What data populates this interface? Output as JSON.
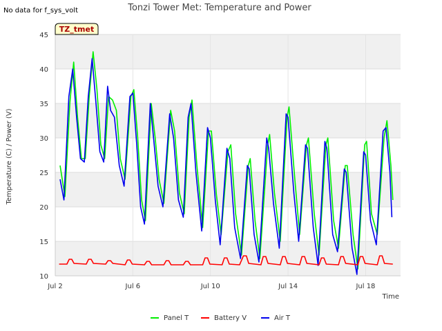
{
  "chart_data": {
    "type": "line",
    "title": "Tonzi Tower Met: Temperature and Power",
    "note": "No data for f_sys_volt",
    "site_label": "TZ_tmet",
    "xlabel": "Time",
    "ylabel": "Temperature (C) / Power (V)",
    "xlim": [
      2.0,
      19.8
    ],
    "ylim": [
      10,
      45
    ],
    "x_ticks": [
      {
        "value": 2,
        "label": "Jul 2"
      },
      {
        "value": 6,
        "label": "Jul 6"
      },
      {
        "value": 10,
        "label": "Jul 10"
      },
      {
        "value": 14,
        "label": "Jul 14"
      },
      {
        "value": 18,
        "label": "Jul 18"
      }
    ],
    "y_ticks": [
      10,
      15,
      20,
      25,
      30,
      35,
      40,
      45
    ],
    "grid": true,
    "legend_position": "bottom",
    "series": [
      {
        "name": "Panel T",
        "color": "#00ee00",
        "points": [
          [
            2.25,
            26.0
          ],
          [
            2.5,
            21.5
          ],
          [
            2.75,
            35.0
          ],
          [
            2.95,
            41.0
          ],
          [
            3.15,
            33.0
          ],
          [
            3.35,
            27.0
          ],
          [
            3.55,
            27.0
          ],
          [
            3.75,
            36.0
          ],
          [
            3.95,
            42.5
          ],
          [
            4.15,
            37.0
          ],
          [
            4.35,
            29.0
          ],
          [
            4.55,
            27.0
          ],
          [
            4.75,
            36.0
          ],
          [
            4.95,
            35.5
          ],
          [
            5.15,
            34.0
          ],
          [
            5.35,
            27.0
          ],
          [
            5.6,
            24.0
          ],
          [
            5.9,
            36.0
          ],
          [
            6.05,
            37.0
          ],
          [
            6.25,
            30.0
          ],
          [
            6.45,
            21.0
          ],
          [
            6.65,
            18.0
          ],
          [
            6.95,
            35.0
          ],
          [
            7.15,
            30.0
          ],
          [
            7.35,
            24.0
          ],
          [
            7.6,
            20.5
          ],
          [
            7.95,
            34.0
          ],
          [
            8.15,
            31.0
          ],
          [
            8.4,
            22.0
          ],
          [
            8.65,
            19.0
          ],
          [
            8.9,
            33.0
          ],
          [
            9.05,
            35.5
          ],
          [
            9.3,
            26.0
          ],
          [
            9.6,
            17.0
          ],
          [
            9.9,
            31.0
          ],
          [
            10.05,
            31.0
          ],
          [
            10.3,
            22.0
          ],
          [
            10.55,
            16.0
          ],
          [
            10.9,
            28.0
          ],
          [
            11.05,
            29.0
          ],
          [
            11.3,
            19.0
          ],
          [
            11.6,
            13.0
          ],
          [
            11.95,
            26.0
          ],
          [
            12.05,
            27.0
          ],
          [
            12.3,
            18.0
          ],
          [
            12.55,
            12.5
          ],
          [
            12.95,
            29.0
          ],
          [
            13.05,
            30.5
          ],
          [
            13.3,
            22.0
          ],
          [
            13.6,
            15.0
          ],
          [
            13.95,
            33.0
          ],
          [
            14.05,
            34.5
          ],
          [
            14.35,
            24.0
          ],
          [
            14.6,
            16.0
          ],
          [
            14.95,
            29.0
          ],
          [
            15.05,
            30.0
          ],
          [
            15.35,
            19.0
          ],
          [
            15.6,
            13.0
          ],
          [
            15.95,
            29.0
          ],
          [
            16.05,
            30.0
          ],
          [
            16.35,
            18.0
          ],
          [
            16.6,
            14.0
          ],
          [
            16.95,
            26.0
          ],
          [
            17.05,
            26.0
          ],
          [
            17.35,
            16.0
          ],
          [
            17.6,
            11.0
          ],
          [
            17.95,
            29.0
          ],
          [
            18.05,
            29.5
          ],
          [
            18.3,
            19.0
          ],
          [
            18.6,
            16.0
          ],
          [
            18.95,
            30.0
          ],
          [
            19.1,
            32.5
          ],
          [
            19.3,
            26.0
          ],
          [
            19.4,
            21.0
          ]
        ]
      },
      {
        "name": "Battery V",
        "color": "#ff0000",
        "points": [
          [
            2.2,
            11.7
          ],
          [
            2.6,
            11.7
          ],
          [
            2.72,
            12.4
          ],
          [
            2.85,
            12.4
          ],
          [
            2.97,
            11.8
          ],
          [
            3.6,
            11.7
          ],
          [
            3.72,
            12.4
          ],
          [
            3.85,
            12.4
          ],
          [
            3.97,
            11.8
          ],
          [
            4.6,
            11.7
          ],
          [
            4.72,
            12.2
          ],
          [
            4.85,
            12.2
          ],
          [
            4.97,
            11.8
          ],
          [
            5.6,
            11.6
          ],
          [
            5.72,
            12.3
          ],
          [
            5.85,
            12.3
          ],
          [
            5.97,
            11.7
          ],
          [
            6.6,
            11.6
          ],
          [
            6.72,
            12.1
          ],
          [
            6.85,
            12.1
          ],
          [
            6.97,
            11.6
          ],
          [
            7.6,
            11.6
          ],
          [
            7.72,
            12.2
          ],
          [
            7.85,
            12.2
          ],
          [
            7.97,
            11.6
          ],
          [
            8.6,
            11.6
          ],
          [
            8.72,
            12.1
          ],
          [
            8.85,
            12.1
          ],
          [
            8.97,
            11.6
          ],
          [
            9.6,
            11.6
          ],
          [
            9.72,
            12.6
          ],
          [
            9.85,
            12.6
          ],
          [
            9.97,
            11.7
          ],
          [
            10.6,
            11.6
          ],
          [
            10.72,
            12.6
          ],
          [
            10.85,
            12.6
          ],
          [
            10.97,
            11.7
          ],
          [
            11.5,
            11.6
          ],
          [
            11.7,
            12.9
          ],
          [
            11.85,
            12.9
          ],
          [
            11.97,
            11.8
          ],
          [
            12.6,
            11.6
          ],
          [
            12.72,
            12.8
          ],
          [
            12.85,
            12.8
          ],
          [
            12.97,
            11.8
          ],
          [
            13.6,
            11.6
          ],
          [
            13.72,
            12.8
          ],
          [
            13.85,
            12.8
          ],
          [
            13.97,
            11.8
          ],
          [
            14.6,
            11.6
          ],
          [
            14.72,
            12.8
          ],
          [
            14.85,
            12.8
          ],
          [
            14.97,
            11.8
          ],
          [
            15.6,
            11.6
          ],
          [
            15.72,
            12.6
          ],
          [
            15.85,
            12.6
          ],
          [
            15.97,
            11.7
          ],
          [
            16.6,
            11.6
          ],
          [
            16.72,
            12.8
          ],
          [
            16.85,
            12.8
          ],
          [
            16.97,
            11.8
          ],
          [
            17.6,
            11.6
          ],
          [
            17.72,
            12.8
          ],
          [
            17.85,
            12.8
          ],
          [
            17.97,
            11.8
          ],
          [
            18.6,
            11.6
          ],
          [
            18.72,
            12.9
          ],
          [
            18.85,
            12.9
          ],
          [
            18.97,
            11.8
          ],
          [
            19.4,
            11.7
          ]
        ]
      },
      {
        "name": "Air T",
        "color": "#0000ee",
        "points": [
          [
            2.25,
            24.0
          ],
          [
            2.45,
            21.0
          ],
          [
            2.7,
            36.0
          ],
          [
            2.9,
            40.0
          ],
          [
            3.1,
            33.0
          ],
          [
            3.3,
            27.0
          ],
          [
            3.5,
            26.5
          ],
          [
            3.7,
            36.0
          ],
          [
            3.9,
            41.5
          ],
          [
            4.1,
            35.0
          ],
          [
            4.3,
            28.0
          ],
          [
            4.5,
            26.5
          ],
          [
            4.7,
            37.5
          ],
          [
            4.85,
            34.0
          ],
          [
            5.05,
            33.0
          ],
          [
            5.3,
            26.0
          ],
          [
            5.55,
            23.0
          ],
          [
            5.85,
            36.0
          ],
          [
            6.0,
            36.5
          ],
          [
            6.2,
            29.0
          ],
          [
            6.4,
            20.0
          ],
          [
            6.6,
            17.5
          ],
          [
            6.9,
            35.0
          ],
          [
            7.1,
            29.0
          ],
          [
            7.3,
            23.0
          ],
          [
            7.55,
            20.0
          ],
          [
            7.9,
            33.5
          ],
          [
            8.1,
            30.0
          ],
          [
            8.35,
            21.0
          ],
          [
            8.6,
            18.5
          ],
          [
            8.85,
            33.0
          ],
          [
            9.0,
            35.0
          ],
          [
            9.25,
            25.0
          ],
          [
            9.55,
            16.5
          ],
          [
            9.85,
            31.5
          ],
          [
            10.0,
            30.0
          ],
          [
            10.25,
            21.0
          ],
          [
            10.5,
            14.5
          ],
          [
            10.85,
            28.5
          ],
          [
            11.0,
            27.0
          ],
          [
            11.25,
            17.0
          ],
          [
            11.55,
            12.5
          ],
          [
            11.9,
            26.0
          ],
          [
            12.0,
            25.5
          ],
          [
            12.25,
            16.0
          ],
          [
            12.5,
            12.0
          ],
          [
            12.9,
            30.0
          ],
          [
            13.0,
            28.5
          ],
          [
            13.25,
            20.5
          ],
          [
            13.55,
            14.0
          ],
          [
            13.9,
            33.5
          ],
          [
            14.0,
            33.0
          ],
          [
            14.3,
            22.0
          ],
          [
            14.55,
            15.0
          ],
          [
            14.9,
            29.0
          ],
          [
            15.0,
            28.5
          ],
          [
            15.3,
            17.0
          ],
          [
            15.55,
            11.5
          ],
          [
            15.9,
            29.5
          ],
          [
            16.0,
            28.5
          ],
          [
            16.3,
            16.0
          ],
          [
            16.55,
            13.5
          ],
          [
            16.9,
            25.5
          ],
          [
            17.0,
            25.0
          ],
          [
            17.3,
            14.0
          ],
          [
            17.55,
            10.2
          ],
          [
            17.9,
            28.0
          ],
          [
            18.0,
            27.5
          ],
          [
            18.25,
            18.0
          ],
          [
            18.55,
            14.5
          ],
          [
            18.9,
            31.0
          ],
          [
            19.05,
            31.5
          ],
          [
            19.25,
            25.0
          ],
          [
            19.35,
            18.5
          ]
        ]
      }
    ]
  }
}
